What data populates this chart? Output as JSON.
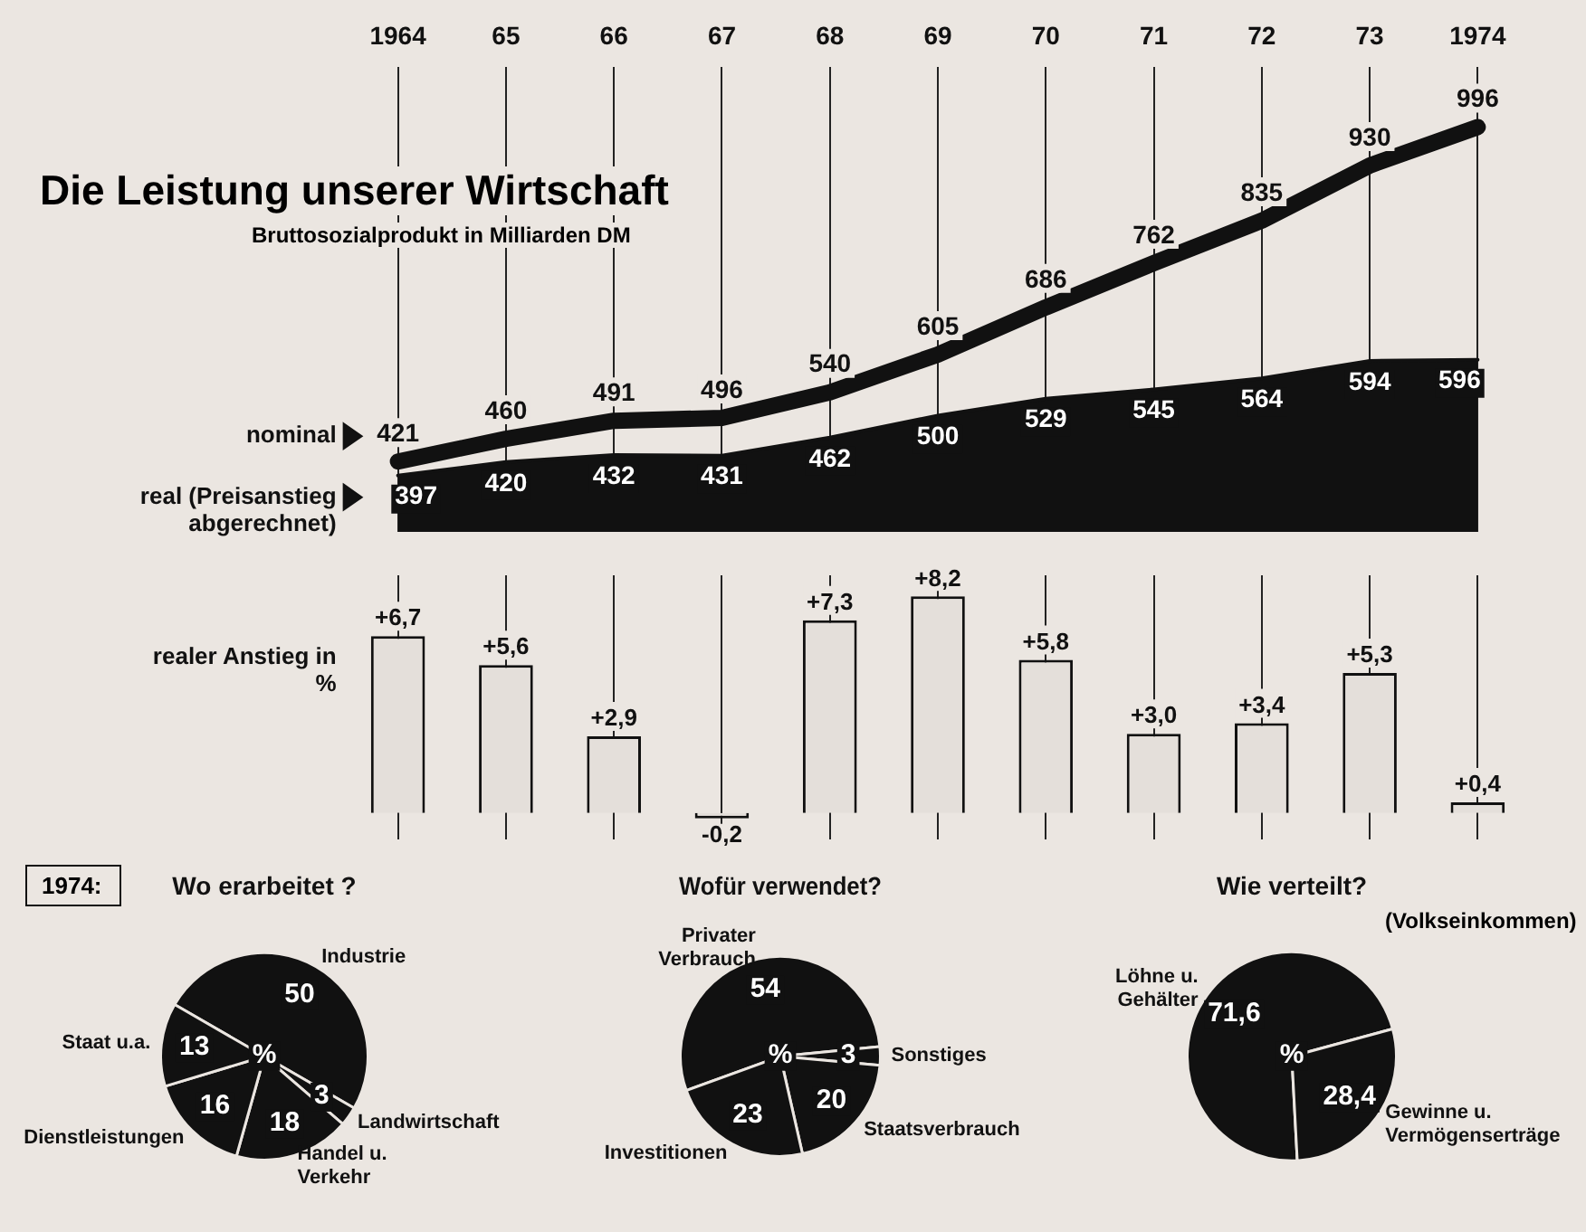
{
  "chart_data": [
    {
      "type": "line",
      "title": "Die Leistung unserer Wirtschaft",
      "subtitle": "Bruttosozialprodukt in Milliarden DM",
      "categories": [
        "1964",
        "65",
        "66",
        "67",
        "68",
        "69",
        "70",
        "71",
        "72",
        "73",
        "1974"
      ],
      "grid": "x",
      "marker": "none",
      "data_labels": true,
      "legend": "left",
      "series": [
        {
          "name": "nominal",
          "color": "#111111",
          "values": [
            421,
            460,
            491,
            496,
            540,
            605,
            686,
            762,
            835,
            930,
            996
          ]
        },
        {
          "name": "real (Preisanstieg abgerechnet)",
          "type": "area",
          "color": "#111111",
          "values": [
            397,
            420,
            432,
            431,
            462,
            500,
            529,
            545,
            564,
            594,
            596
          ]
        }
      ]
    },
    {
      "type": "bar",
      "categories": [
        "1964",
        "65",
        "66",
        "67",
        "68",
        "69",
        "70",
        "71",
        "72",
        "73",
        "1974"
      ],
      "tick_labels": false,
      "grid": "x",
      "legend": "left",
      "series": [
        {
          "name": "realer Anstieg in %",
          "color": "#e4dfda",
          "values": [
            6.7,
            5.6,
            2.9,
            -0.2,
            7.3,
            8.2,
            5.8,
            3.0,
            3.4,
            5.3,
            0.4
          ],
          "value_labels": [
            "+6,7",
            "+5,6",
            "+2,9",
            "-0,2",
            "+7,3",
            "+8,2",
            "+5,8",
            "+3,0",
            "+3,4",
            "+5,3",
            "+0,4"
          ]
        }
      ]
    },
    {
      "type": "pie",
      "title": "Wo erarbeitet ?",
      "categories": [
        "Industrie",
        "Landwirtschaft",
        "Handel u. Verkehr",
        "Dienstleistungen",
        "Staat u.a."
      ],
      "values": [
        50,
        3,
        18,
        16,
        13
      ],
      "colors": [
        "#111111",
        "#111111",
        "#111111",
        "#111111",
        "#111111"
      ],
      "data_labels": true,
      "annotations": [
        "%",
        "1974:"
      ]
    },
    {
      "type": "pie",
      "title": "Wofür verwendet?",
      "categories": [
        "Privater Verbrauch",
        "Sonstiges",
        "Staatsverbrauch",
        "Investitionen"
      ],
      "values": [
        54,
        3,
        20,
        23
      ],
      "colors": [
        "#111111",
        "#111111",
        "#111111",
        "#111111"
      ],
      "data_labels": true,
      "annotations": [
        "%"
      ]
    },
    {
      "type": "pie",
      "title": "Wie verteilt?",
      "categories": [
        "Löhne u. Gehälter",
        "Gewinne u. Vermögenserträge"
      ],
      "values": [
        71.6,
        28.4
      ],
      "colors": [
        "#111111",
        "#111111"
      ],
      "value_labels": [
        "71,6",
        "28,4"
      ],
      "annotations": [
        "%",
        "(Volkseinkommen)"
      ]
    }
  ]
}
